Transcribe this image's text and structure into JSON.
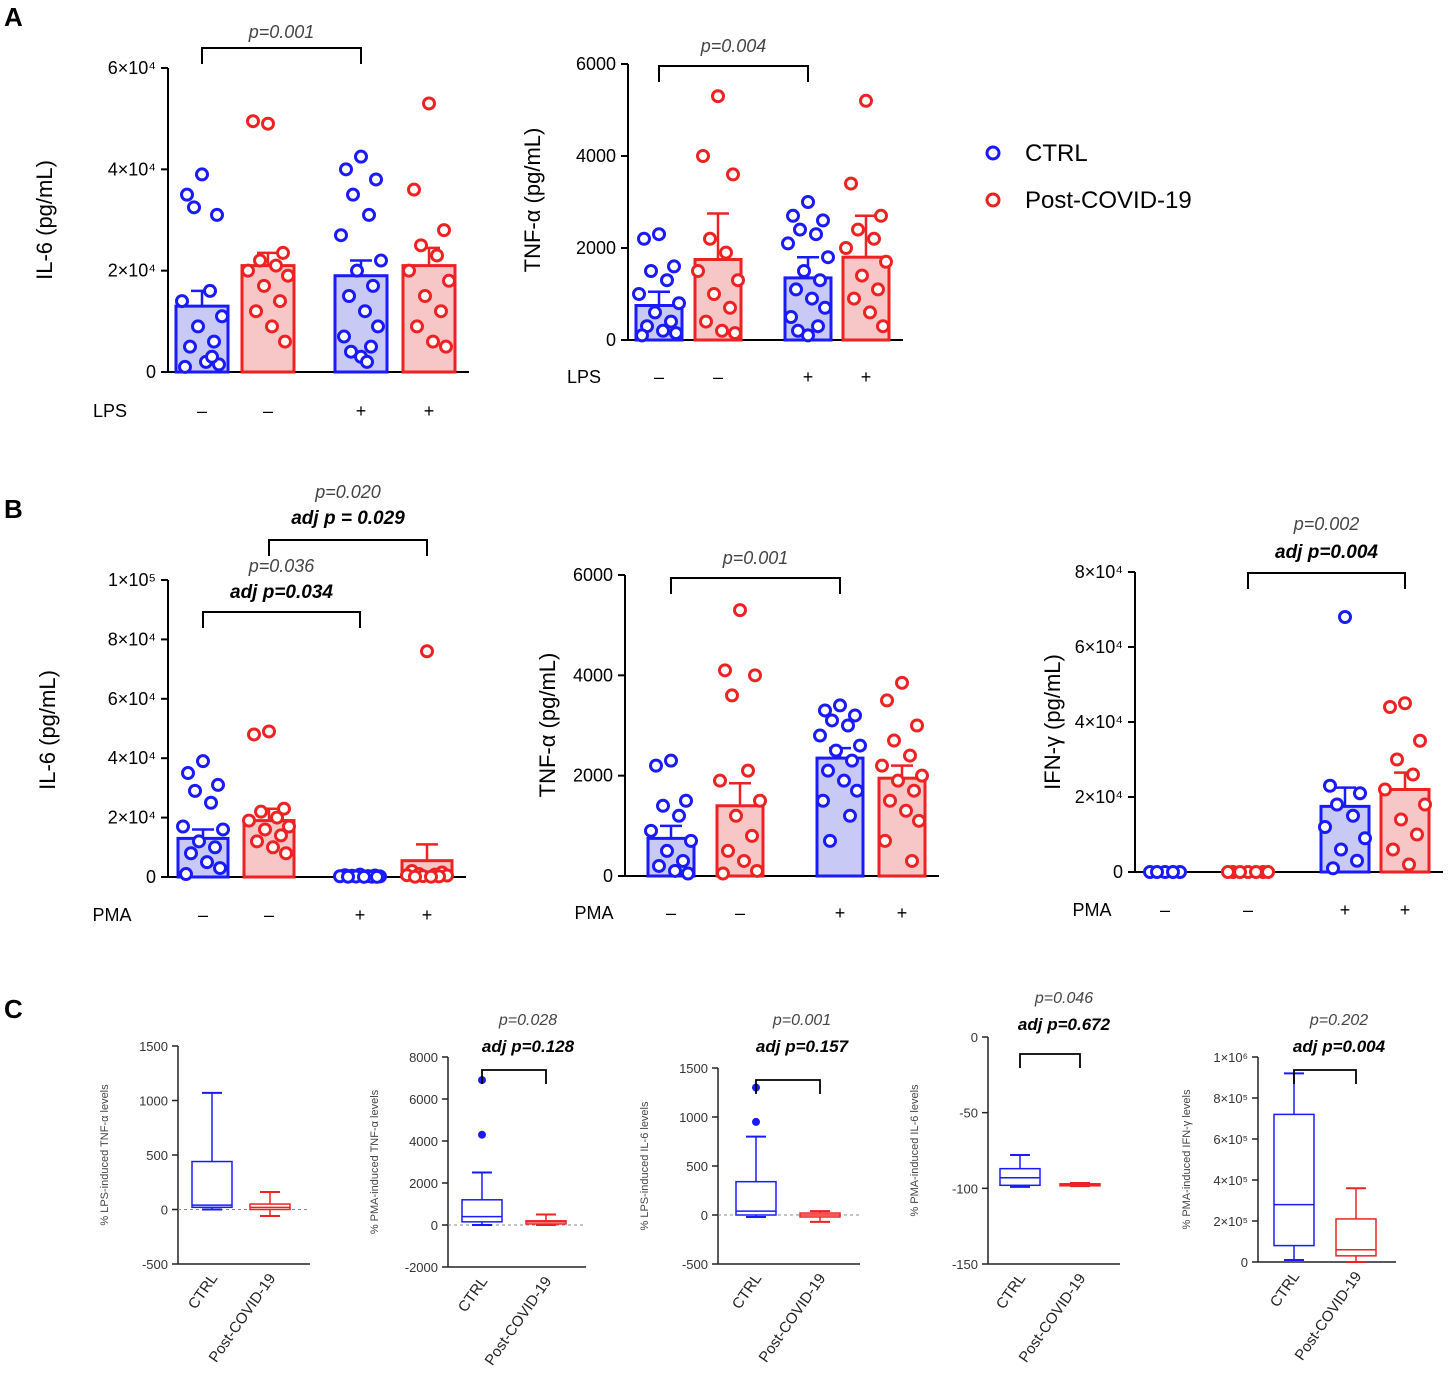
{
  "panel_labels": [
    "A",
    "B",
    "C"
  ],
  "colors": {
    "ctrl": "#1a1aff",
    "covid": "#ee2222",
    "ctrl_fill": "#c9c9f5",
    "covid_fill": "#f7c6c6",
    "axis": "#000000"
  },
  "legend": [
    {
      "label": "CTRL",
      "color": "#1a1aff"
    },
    {
      "label": "Post-COVID-19",
      "color": "#ee2222"
    }
  ],
  "chart_data": [
    {
      "id": "A1",
      "type": "bar",
      "panel": "A",
      "ylabel": "IL-6 (pg/mL)",
      "ylim": [
        0,
        60000
      ],
      "ticks": [
        {
          "v": 0,
          "label": "0"
        },
        {
          "v": 20000,
          "label": "2×10⁴"
        },
        {
          "v": 40000,
          "label": "4×10⁴"
        },
        {
          "v": 60000,
          "label": "6×10⁴"
        }
      ],
      "treatment": "LPS",
      "signs": [
        "–",
        "–",
        "+",
        "+"
      ],
      "groups": [
        {
          "name": "CTRL, LPS –",
          "mean": 13000,
          "sem": 3000,
          "points": [
            39000,
            35000,
            31000,
            32500,
            16000,
            14000,
            11000,
            9000,
            6000,
            5000,
            2000,
            1500,
            1000,
            3000
          ]
        },
        {
          "name": "Post-COVID-19, LPS –",
          "mean": 21000,
          "sem": 2500,
          "points": [
            49000,
            49500,
            23500,
            22000,
            21000,
            20000,
            19000,
            17000,
            14000,
            12000,
            9000,
            6000
          ]
        },
        {
          "name": "CTRL, LPS +",
          "mean": 19000,
          "sem": 3000,
          "points": [
            42500,
            40000,
            38000,
            35000,
            31000,
            27000,
            22000,
            20000,
            17000,
            15000,
            12000,
            9000,
            7000,
            5000,
            4000,
            3000,
            2000
          ]
        },
        {
          "name": "Post-COVID-19, LPS +",
          "mean": 21000,
          "sem": 3500,
          "points": [
            53000,
            36000,
            28000,
            25000,
            23000,
            20000,
            18000,
            15000,
            12000,
            9000,
            6000,
            5000
          ]
        }
      ],
      "brackets": [
        {
          "from": 0,
          "to": 2,
          "p": "p=0.001"
        }
      ]
    },
    {
      "id": "A2",
      "type": "bar",
      "panel": "A",
      "ylabel": "TNF-α (pg/mL)",
      "ylim": [
        0,
        6000
      ],
      "ticks": [
        {
          "v": 0,
          "label": "0"
        },
        {
          "v": 2000,
          "label": "2000"
        },
        {
          "v": 4000,
          "label": "4000"
        },
        {
          "v": 6000,
          "label": "6000"
        }
      ],
      "treatment": "LPS",
      "signs": [
        "–",
        "–",
        "+",
        "+"
      ],
      "groups": [
        {
          "name": "CTRL, LPS –",
          "mean": 750,
          "sem": 300,
          "points": [
            2300,
            2200,
            1600,
            1500,
            1300,
            1000,
            800,
            600,
            400,
            300,
            200,
            150,
            100
          ]
        },
        {
          "name": "Post-COVID-19, LPS –",
          "mean": 1750,
          "sem": 1000,
          "points": [
            5300,
            4000,
            3600,
            2200,
            1900,
            1500,
            1300,
            1000,
            700,
            400,
            200,
            150
          ]
        },
        {
          "name": "CTRL, LPS +",
          "mean": 1350,
          "sem": 450,
          "points": [
            3000,
            2700,
            2600,
            2400,
            2300,
            2100,
            1800,
            1500,
            1300,
            1100,
            900,
            700,
            500,
            300,
            200,
            100
          ]
        },
        {
          "name": "Post-COVID-19, LPS +",
          "mean": 1800,
          "sem": 900,
          "points": [
            5200,
            3400,
            2700,
            2400,
            2200,
            2000,
            1700,
            1400,
            1100,
            900,
            600,
            300
          ]
        }
      ],
      "brackets": [
        {
          "from": 0,
          "to": 2,
          "p": "p=0.004"
        }
      ]
    },
    {
      "id": "B1",
      "type": "bar",
      "panel": "B",
      "ylabel": "IL-6 (pg/mL)",
      "ylim": [
        0,
        100000
      ],
      "ticks": [
        {
          "v": 0,
          "label": "0"
        },
        {
          "v": 20000,
          "label": "2×10⁴"
        },
        {
          "v": 40000,
          "label": "4×10⁴"
        },
        {
          "v": 60000,
          "label": "6×10⁴"
        },
        {
          "v": 80000,
          "label": "8×10⁴"
        },
        {
          "v": 100000,
          "label": "1×10⁵"
        }
      ],
      "treatment": "PMA",
      "signs": [
        "–",
        "–",
        "+",
        "+"
      ],
      "groups": [
        {
          "name": "CTRL, PMA –",
          "mean": 13000,
          "sem": 3000,
          "points": [
            39000,
            35000,
            31000,
            29000,
            25000,
            17000,
            16000,
            12000,
            10000,
            8000,
            5000,
            3000,
            1000
          ]
        },
        {
          "name": "Post-COVID-19, PMA –",
          "mean": 19000,
          "sem": 4000,
          "points": [
            49000,
            48000,
            23000,
            22000,
            20000,
            19000,
            17000,
            16000,
            14000,
            12000,
            10000,
            8000
          ]
        },
        {
          "name": "CTRL, PMA +",
          "mean": 300,
          "sem": 100,
          "points": [
            800,
            600,
            500,
            400,
            300,
            250,
            200,
            150,
            100,
            100,
            50,
            50
          ]
        },
        {
          "name": "Post-COVID-19, PMA +",
          "mean": 5500,
          "sem": 5500,
          "points": [
            76000,
            2000,
            1500,
            1000,
            800,
            600,
            500,
            300,
            200,
            100,
            100
          ]
        }
      ],
      "brackets": [
        {
          "from": 0,
          "to": 2,
          "p": "p=0.036",
          "adj": "adj p=0.034"
        },
        {
          "from": 1,
          "to": 3,
          "p": "p=0.020",
          "adj": "adj p = 0.029"
        }
      ]
    },
    {
      "id": "B2",
      "type": "bar",
      "panel": "B",
      "ylabel": "TNF-α (pg/mL)",
      "ylim": [
        0,
        6000
      ],
      "ticks": [
        {
          "v": 0,
          "label": "0"
        },
        {
          "v": 2000,
          "label": "2000"
        },
        {
          "v": 4000,
          "label": "4000"
        },
        {
          "v": 6000,
          "label": "6000"
        }
      ],
      "treatment": "PMA",
      "signs": [
        "–",
        "–",
        "+",
        "+"
      ],
      "groups": [
        {
          "name": "CTRL, PMA –",
          "mean": 750,
          "sem": 250,
          "points": [
            2300,
            2200,
            1500,
            1400,
            1200,
            900,
            700,
            500,
            300,
            200,
            100,
            50
          ]
        },
        {
          "name": "Post-COVID-19, PMA –",
          "mean": 1400,
          "sem": 450,
          "points": [
            5300,
            4100,
            4000,
            3600,
            2100,
            1900,
            1500,
            1200,
            800,
            500,
            300,
            100,
            50
          ]
        },
        {
          "name": "CTRL, PMA +",
          "mean": 2350,
          "sem": 200,
          "points": [
            3400,
            3300,
            3200,
            3100,
            3000,
            2800,
            2600,
            2500,
            2300,
            2100,
            1900,
            1700,
            1500,
            1200,
            700
          ]
        },
        {
          "name": "Post-COVID-19, PMA +",
          "mean": 1950,
          "sem": 250,
          "points": [
            3850,
            3500,
            3000,
            2700,
            2400,
            2200,
            2000,
            1900,
            1700,
            1500,
            1300,
            1100,
            700,
            300
          ]
        }
      ],
      "brackets": [
        {
          "from": 0,
          "to": 2,
          "p": "p=0.001"
        }
      ]
    },
    {
      "id": "B3",
      "type": "bar",
      "panel": "B",
      "ylabel": "IFN-γ (pg/mL)",
      "ylim": [
        0,
        80000
      ],
      "ticks": [
        {
          "v": 0,
          "label": "0"
        },
        {
          "v": 20000,
          "label": "2×10⁴"
        },
        {
          "v": 40000,
          "label": "4×10⁴"
        },
        {
          "v": 60000,
          "label": "6×10⁴"
        },
        {
          "v": 80000,
          "label": "8×10⁴"
        }
      ],
      "treatment": "PMA",
      "signs": [
        "–",
        "–",
        "+",
        "+"
      ],
      "groups": [
        {
          "name": "CTRL, PMA –",
          "mean": 0,
          "sem": 0,
          "points": [
            0,
            0,
            0,
            0,
            0
          ]
        },
        {
          "name": "Post-COVID-19, PMA –",
          "mean": 0,
          "sem": 0,
          "points": [
            0,
            0,
            0,
            0,
            0,
            0,
            0
          ]
        },
        {
          "name": "CTRL, PMA +",
          "mean": 17500,
          "sem": 5000,
          "points": [
            68000,
            23000,
            21000,
            18000,
            15000,
            12000,
            9000,
            6000,
            3000,
            1000
          ]
        },
        {
          "name": "Post-COVID-19, PMA +",
          "mean": 22000,
          "sem": 4500,
          "points": [
            45000,
            44000,
            35000,
            30000,
            26000,
            22000,
            18000,
            14000,
            10000,
            6000,
            2000
          ]
        }
      ],
      "brackets": [
        {
          "from": 1,
          "to": 3,
          "p": "p=0.002",
          "adj": "adj p=0.004"
        }
      ]
    },
    {
      "id": "C1",
      "type": "box",
      "panel": "C",
      "ylabel": "% LPS-induced TNF-α levels",
      "ylim": [
        -500,
        1500
      ],
      "ticks": [
        {
          "v": -500,
          "label": "-500"
        },
        {
          "v": 0,
          "label": "0"
        },
        {
          "v": 500,
          "label": "500"
        },
        {
          "v": 1000,
          "label": "1000"
        },
        {
          "v": 1500,
          "label": "1500"
        }
      ],
      "categories": [
        "CTRL",
        "Post-COVID-19"
      ],
      "boxes": [
        {
          "min": 0,
          "q1": 20,
          "median": 40,
          "q3": 440,
          "max": 1070,
          "outliers": []
        },
        {
          "min": -60,
          "q1": 0,
          "median": 20,
          "q3": 50,
          "max": 160,
          "outliers": []
        }
      ]
    },
    {
      "id": "C2",
      "type": "box",
      "panel": "C",
      "ylabel": "% PMA-induced TNF-α levels",
      "ylim": [
        -2000,
        8000
      ],
      "ticks": [
        {
          "v": -2000,
          "label": "-2000"
        },
        {
          "v": 0,
          "label": "0"
        },
        {
          "v": 2000,
          "label": "2000"
        },
        {
          "v": 4000,
          "label": "4000"
        },
        {
          "v": 6000,
          "label": "6000"
        },
        {
          "v": 8000,
          "label": "8000"
        }
      ],
      "categories": [
        "CTRL",
        "Post-COVID-19"
      ],
      "boxes": [
        {
          "min": 0,
          "q1": 150,
          "median": 400,
          "q3": 1200,
          "max": 2500,
          "outliers": [
            6900,
            4300
          ]
        },
        {
          "min": 0,
          "q1": 50,
          "median": 150,
          "q3": 200,
          "max": 500,
          "outliers": []
        }
      ],
      "bracket": {
        "p": "p=0.028",
        "adj": "adj p=0.128"
      }
    },
    {
      "id": "C3",
      "type": "box",
      "panel": "C",
      "ylabel": "% LPS-induced IL-6 levels",
      "ylim": [
        -500,
        1500
      ],
      "ticks": [
        {
          "v": -500,
          "label": "-500"
        },
        {
          "v": 0,
          "label": "0"
        },
        {
          "v": 500,
          "label": "500"
        },
        {
          "v": 1000,
          "label": "1000"
        },
        {
          "v": 1500,
          "label": "1500"
        }
      ],
      "categories": [
        "CTRL",
        "Post-COVID-19"
      ],
      "boxes": [
        {
          "min": -20,
          "q1": 0,
          "median": 40,
          "q3": 340,
          "max": 800,
          "outliers": [
            1300,
            950
          ]
        },
        {
          "min": -70,
          "q1": -20,
          "median": 0,
          "q3": 20,
          "max": 40,
          "outliers": []
        }
      ],
      "bracket": {
        "p": "p=0.001",
        "adj": "adj p=0.157"
      }
    },
    {
      "id": "C4",
      "type": "box",
      "panel": "C",
      "ylabel": "% PMA-induced IL-6 levels",
      "ylim": [
        -150,
        0
      ],
      "ticks": [
        {
          "v": -150,
          "label": "-150"
        },
        {
          "v": -100,
          "label": "-100"
        },
        {
          "v": -50,
          "label": "-50"
        },
        {
          "v": 0,
          "label": "0"
        }
      ],
      "categories": [
        "CTRL",
        "Post-COVID-19"
      ],
      "boxes": [
        {
          "min": -99,
          "q1": -98,
          "median": -93,
          "q3": -87,
          "max": -78,
          "outliers": []
        },
        {
          "min": -98.5,
          "q1": -98,
          "median": -97.5,
          "q3": -97,
          "max": -96.5,
          "outliers": []
        }
      ],
      "bracket": {
        "p": "p=0.046",
        "adj": "adj p=0.672"
      }
    },
    {
      "id": "C5",
      "type": "box",
      "panel": "C",
      "ylabel": "% PMA-induced IFN-γ levels",
      "ylim": [
        0,
        1000000
      ],
      "ticks": [
        {
          "v": 0,
          "label": "0"
        },
        {
          "v": 200000,
          "label": "2×10⁵"
        },
        {
          "v": 400000,
          "label": "4×10⁵"
        },
        {
          "v": 600000,
          "label": "6×10⁵"
        },
        {
          "v": 800000,
          "label": "8×10⁵"
        },
        {
          "v": 1000000,
          "label": "1×10⁶"
        }
      ],
      "categories": [
        "CTRL",
        "Post-COVID-19"
      ],
      "boxes": [
        {
          "min": 10000,
          "q1": 80000,
          "median": 280000,
          "q3": 720000,
          "max": 920000,
          "outliers": []
        },
        {
          "min": 0,
          "q1": 30000,
          "median": 60000,
          "q3": 210000,
          "max": 360000,
          "outliers": []
        }
      ],
      "bracket": {
        "p": "p=0.202",
        "adj": "adj p=0.004"
      }
    }
  ]
}
